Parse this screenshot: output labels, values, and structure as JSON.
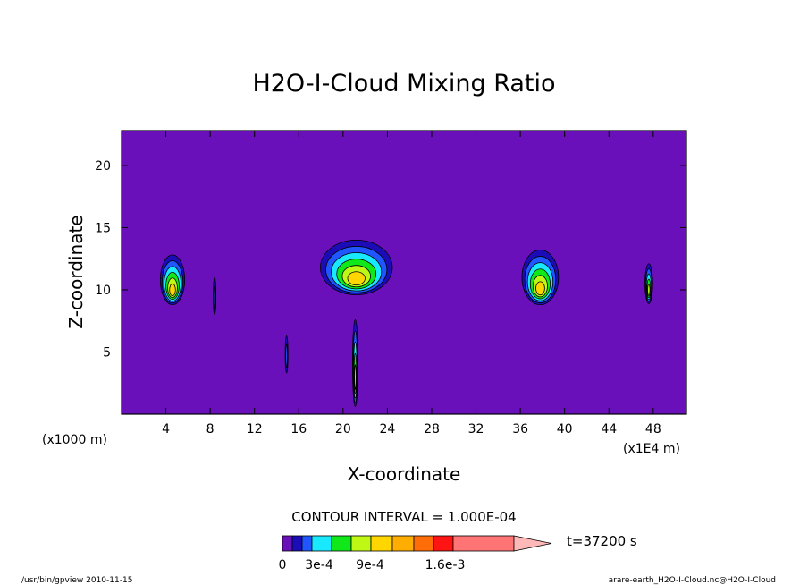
{
  "chart_data": {
    "type": "contour",
    "title": "H2O-I-Cloud Mixing Ratio",
    "xlabel": "X-coordinate",
    "ylabel": "Z-coordinate",
    "x_unit_label": "(x1000 m)",
    "x_unit_label_right": "(x1E4 m)",
    "x_ticks": [
      4,
      8,
      12,
      16,
      20,
      24,
      28,
      32,
      36,
      40,
      44,
      48
    ],
    "y_ticks": [
      5,
      10,
      15,
      20
    ],
    "xlim": [
      0,
      51
    ],
    "ylim": [
      0,
      22.8
    ],
    "contour_interval_text": "CONTOUR INTERVAL = 1.000E-04",
    "time_text": "t=37200 s",
    "colorbar": {
      "labels": [
        "0",
        "3e-4",
        "9e-4",
        "1.6e-3"
      ],
      "colors": [
        "#6a10bb",
        "#1c0cb8",
        "#1f56ff",
        "#18e9ff",
        "#10e81a",
        "#c0f816",
        "#ffd600",
        "#ffad00",
        "#ff6d08",
        "#ff1414",
        "#ff7575",
        "#ffb8b8"
      ]
    },
    "background_color": "#6a10bb",
    "footer_left": "/usr/bin/gpview  2010-11-15",
    "footer_right": "arare-earth_H2O-I-Cloud.nc@H2O-I-Cloud",
    "features": [
      {
        "name": "cloud-left",
        "x": 4.6,
        "z": 10.8,
        "width": 2.2,
        "height": 4.0,
        "max_level": 6
      },
      {
        "name": "cloud-center",
        "x": 21.2,
        "z": 11.8,
        "width": 6.5,
        "height": 4.4,
        "max_level": 6
      },
      {
        "name": "cloud-right-mid",
        "x": 37.8,
        "z": 11.0,
        "width": 3.3,
        "height": 4.4,
        "max_level": 6
      },
      {
        "name": "cloud-right",
        "x": 47.6,
        "z": 10.5,
        "width": 0.7,
        "height": 3.2,
        "max_level": 5
      },
      {
        "name": "filament-8",
        "x": 8.4,
        "z": 9.5,
        "width": 0.25,
        "height": 3.0,
        "max_level": 2
      },
      {
        "name": "filament-15",
        "x": 14.9,
        "z": 4.8,
        "width": 0.25,
        "height": 3.0,
        "max_level": 2
      },
      {
        "name": "filament-21",
        "x": 21.1,
        "z": 4.1,
        "width": 0.5,
        "height": 7.0,
        "max_level": 5
      }
    ]
  }
}
